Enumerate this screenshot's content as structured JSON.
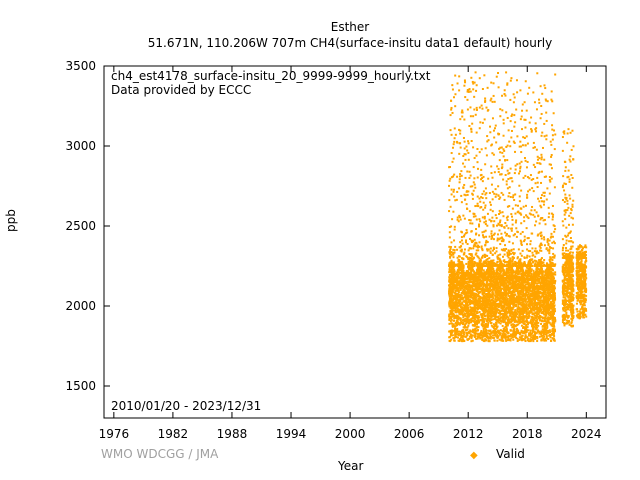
{
  "chart_data": {
    "type": "scatter",
    "title_line1": "Esther",
    "title_line2": "51.671N, 110.206W 707m    CH4(surface-insitu data1 default) hourly",
    "file_label": "ch4_est4178_surface-insitu_20_9999-9999_hourly.txt",
    "provider_label": "Data provided by ECCC",
    "date_range_label": "2010/01/20 - 2023/12/31",
    "xlabel": "Year",
    "ylabel": "ppb",
    "xlim": [
      1975,
      2026
    ],
    "ylim": [
      1300,
      3500
    ],
    "x_ticks": [
      1976,
      1982,
      1988,
      1994,
      2000,
      2006,
      2012,
      2018,
      2024
    ],
    "y_ticks": [
      1500,
      2000,
      2500,
      3000,
      3500
    ],
    "series": [
      {
        "name": "Valid",
        "color": "#ffa500",
        "segments": [
          {
            "start": 2010.05,
            "end": 2020.85,
            "baseline_low": 1850,
            "baseline_high": 2250,
            "spike_max": 3480
          },
          {
            "start": 2021.6,
            "end": 2022.7,
            "baseline_low": 1940,
            "baseline_high": 2300,
            "spike_max": 3110
          },
          {
            "start": 2023.0,
            "end": 2023.99,
            "baseline_low": 1990,
            "baseline_high": 2300,
            "spike_max": 2380
          }
        ]
      }
    ]
  },
  "footer": {
    "credit": "WMO WDCGG / JMA",
    "legend_label": "Valid"
  }
}
